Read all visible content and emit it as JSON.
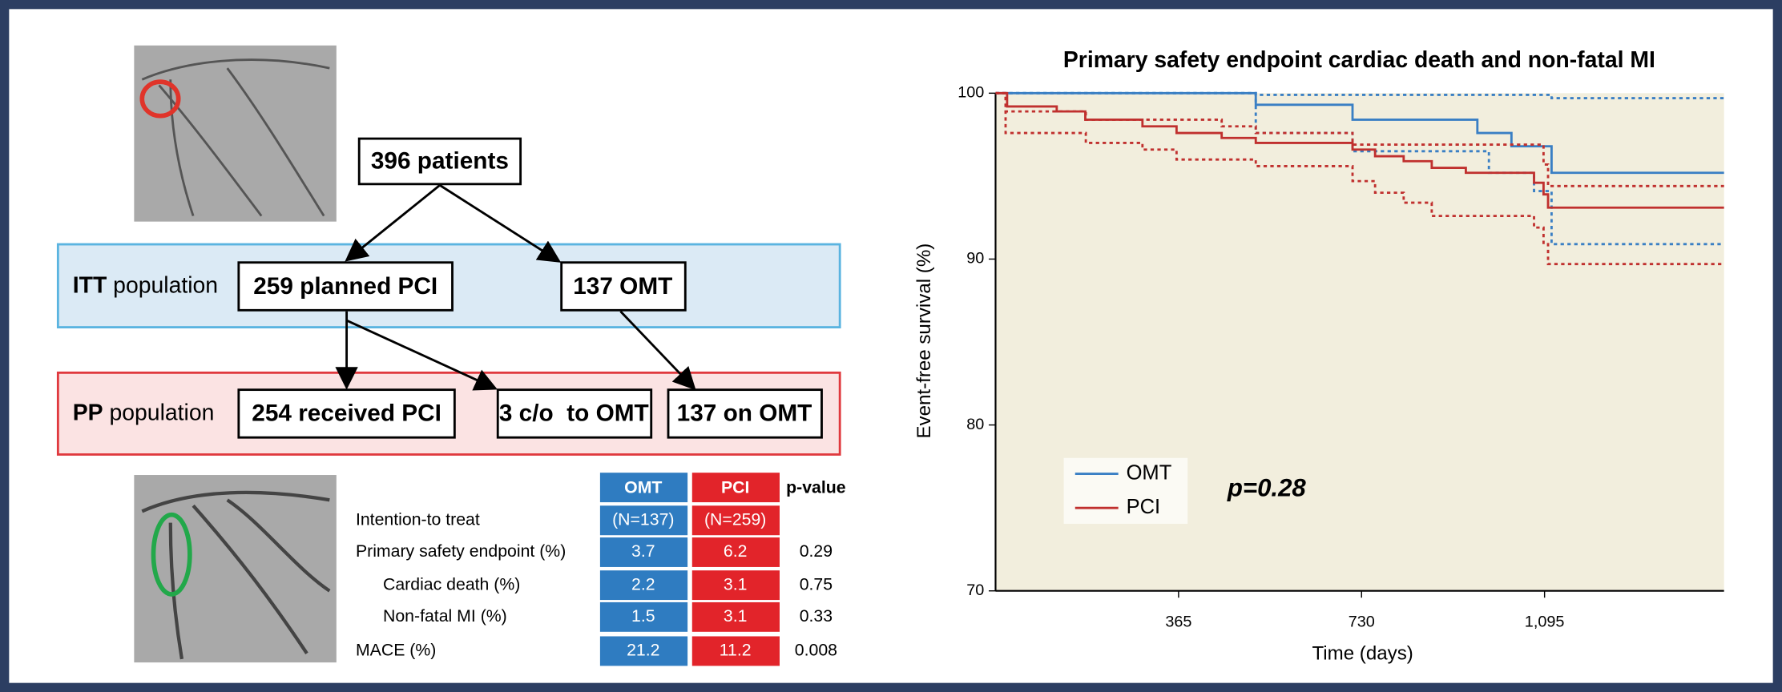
{
  "diagram": {
    "start": "396 patients",
    "itt": {
      "label_bold": "ITT",
      "label": "population",
      "boxes": [
        "259 planned PCI",
        "137 OMT"
      ]
    },
    "pp": {
      "label_bold": "PP",
      "label": "population",
      "boxes": [
        "254 received PCI",
        "3 c/o  to OMT",
        "137 on OMT"
      ]
    }
  },
  "table": {
    "header": [
      "OMT",
      "PCI",
      "p-value"
    ],
    "rows": [
      [
        "Intention-to treat",
        "(N=137)",
        "(N=259)"
      ],
      [
        "Primary safety endpoint (%)",
        3.7,
        6.2,
        0.29
      ],
      [
        "Cardiac death (%)",
        2.2,
        3.1,
        0.75
      ],
      [
        "Non-fatal MI (%)",
        1.5,
        3.1,
        0.33
      ],
      [
        "MACE (%)",
        21.2,
        11.2,
        0.008
      ]
    ]
  },
  "chart_data": {
    "type": "line",
    "step": true,
    "title": "Primary safety endpoint cardiac death and non-fatal MI",
    "xlabel": "Time (days)",
    "ylabel": "Event-free survival (%)",
    "xlim": [
      0,
      1453
    ],
    "ylim": [
      70,
      100
    ],
    "xticks": [
      365,
      730,
      {
        "value": 1095,
        "label": "1,095"
      }
    ],
    "yticks": [
      70,
      80,
      90,
      100
    ],
    "legend": "lower left",
    "annotation": "p=0.28",
    "series": [
      {
        "name": "OMT",
        "color": "#3a7fc4",
        "x": [
          0,
          519,
          712,
          961,
          1029,
          1109,
          1453
        ],
        "values": [
          100,
          99.3,
          98.4,
          97.6,
          96.8,
          95.2,
          95.2
        ],
        "ci_upper": {
          "x": [
            0,
            519,
            1109,
            1453
          ],
          "values": [
            100,
            99.9,
            99.7,
            99.7
          ]
        },
        "ci_lower": {
          "x": [
            0,
            519,
            712,
            984,
            1074,
            1109,
            1453
          ],
          "values": [
            100,
            97.6,
            96.5,
            95.2,
            94.1,
            90.9,
            90.9
          ]
        }
      },
      {
        "name": "PCI",
        "color": "#c0302e",
        "x": [
          0,
          23,
          122,
          179,
          293,
          361,
          451,
          519,
          712,
          757,
          814,
          870,
          938,
          1074,
          1093,
          1102,
          1453
        ],
        "values": [
          100,
          99.2,
          98.9,
          98.4,
          98.0,
          97.6,
          97.3,
          97.0,
          96.6,
          96.2,
          95.9,
          95.5,
          95.2,
          94.6,
          93.9,
          93.1,
          93.1
        ],
        "ci_upper": {
          "x": [
            0,
            20,
            180,
            451,
            519,
            712,
            1093,
            1102,
            1453
          ],
          "values": [
            100,
            98.9,
            98.4,
            98.0,
            97.6,
            96.9,
            95.7,
            94.4,
            94.4
          ]
        },
        "ci_lower": {
          "x": [
            0,
            20,
            180,
            293,
            361,
            519,
            712,
            757,
            814,
            870,
            1074,
            1093,
            1102,
            1453
          ],
          "values": [
            100,
            97.6,
            97.0,
            96.6,
            96.0,
            95.6,
            94.7,
            94.0,
            93.4,
            92.6,
            91.9,
            90.9,
            89.7,
            89.7
          ]
        }
      }
    ]
  }
}
